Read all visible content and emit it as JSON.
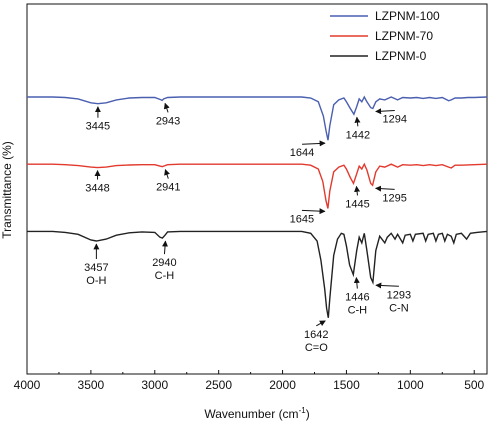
{
  "chart_data": {
    "type": "line",
    "xlabel": "Wavenumber (cm",
    "xlabel_sup": "-1",
    "xlabel_end": ")",
    "ylabel": "Transmittance (%)",
    "xlim": [
      4000,
      400
    ],
    "x_reversed": true,
    "xticks": [
      4000,
      3500,
      3000,
      2500,
      2000,
      1500,
      1000,
      500
    ],
    "yticks_shown": false,
    "grid": false,
    "legend_position": "top-right",
    "series": [
      {
        "name": "LZPNM-100",
        "color": "#4a5fb0",
        "baseline": 0.0,
        "points": [
          [
            4000,
            0
          ],
          [
            3800,
            0
          ],
          [
            3700,
            -0.5
          ],
          [
            3600,
            -2
          ],
          [
            3500,
            -6
          ],
          [
            3445,
            -7
          ],
          [
            3380,
            -6
          ],
          [
            3300,
            -3
          ],
          [
            3200,
            -1
          ],
          [
            3100,
            -0.5
          ],
          [
            3000,
            -0.5
          ],
          [
            2950,
            -3
          ],
          [
            2943,
            -3.5
          ],
          [
            2930,
            -2
          ],
          [
            2900,
            -0.5
          ],
          [
            2800,
            0
          ],
          [
            2000,
            0
          ],
          [
            1850,
            0
          ],
          [
            1780,
            -1
          ],
          [
            1720,
            -5
          ],
          [
            1680,
            -20
          ],
          [
            1660,
            -35
          ],
          [
            1644,
            -45
          ],
          [
            1630,
            -30
          ],
          [
            1600,
            -8
          ],
          [
            1560,
            -3
          ],
          [
            1520,
            -1
          ],
          [
            1500,
            -5
          ],
          [
            1470,
            -12
          ],
          [
            1442,
            -18
          ],
          [
            1420,
            -10
          ],
          [
            1400,
            -2
          ],
          [
            1380,
            -5
          ],
          [
            1360,
            0
          ],
          [
            1340,
            -5
          ],
          [
            1310,
            -11
          ],
          [
            1294,
            -12
          ],
          [
            1270,
            -5
          ],
          [
            1240,
            -2
          ],
          [
            1200,
            -3
          ],
          [
            1150,
            0
          ],
          [
            1100,
            -3
          ],
          [
            1060,
            -0.5
          ],
          [
            1000,
            -1
          ],
          [
            950,
            -0.5
          ],
          [
            900,
            -1.5
          ],
          [
            850,
            -0.5
          ],
          [
            800,
            -1.5
          ],
          [
            750,
            -0.5
          ],
          [
            700,
            -4
          ],
          [
            680,
            -3
          ],
          [
            650,
            -1
          ],
          [
            600,
            -1
          ],
          [
            550,
            -0.5
          ],
          [
            500,
            -0.5
          ],
          [
            400,
            0
          ]
        ]
      },
      {
        "name": "LZPNM-70",
        "color": "#e23a2e",
        "baseline": -70.0,
        "points": [
          [
            4000,
            0
          ],
          [
            3800,
            0
          ],
          [
            3700,
            -0.5
          ],
          [
            3600,
            -1.5
          ],
          [
            3500,
            -3
          ],
          [
            3448,
            -3.5
          ],
          [
            3380,
            -3
          ],
          [
            3300,
            -1.5
          ],
          [
            3200,
            -0.8
          ],
          [
            3100,
            -0.5
          ],
          [
            3000,
            -0.5
          ],
          [
            2960,
            -2
          ],
          [
            2941,
            -2.5
          ],
          [
            2920,
            -1.5
          ],
          [
            2900,
            -0.5
          ],
          [
            2800,
            0
          ],
          [
            2000,
            0
          ],
          [
            1850,
            0
          ],
          [
            1780,
            -1
          ],
          [
            1720,
            -5
          ],
          [
            1685,
            -18
          ],
          [
            1660,
            -38
          ],
          [
            1645,
            -46
          ],
          [
            1630,
            -28
          ],
          [
            1600,
            -8
          ],
          [
            1560,
            -3
          ],
          [
            1520,
            -1
          ],
          [
            1500,
            -5
          ],
          [
            1470,
            -14
          ],
          [
            1445,
            -20
          ],
          [
            1420,
            -10
          ],
          [
            1400,
            -2
          ],
          [
            1380,
            -5
          ],
          [
            1360,
            0
          ],
          [
            1340,
            -6
          ],
          [
            1310,
            -20
          ],
          [
            1295,
            -22
          ],
          [
            1270,
            -8
          ],
          [
            1240,
            -2
          ],
          [
            1200,
            -3
          ],
          [
            1150,
            0
          ],
          [
            1100,
            -3
          ],
          [
            1060,
            -0.5
          ],
          [
            1000,
            -1
          ],
          [
            950,
            -0.5
          ],
          [
            900,
            -1.5
          ],
          [
            850,
            -0.5
          ],
          [
            800,
            -1.5
          ],
          [
            750,
            -0.5
          ],
          [
            700,
            -3
          ],
          [
            680,
            -4
          ],
          [
            650,
            -1
          ],
          [
            600,
            -1
          ],
          [
            500,
            -0.5
          ],
          [
            400,
            0
          ]
        ]
      },
      {
        "name": "LZPNM-0",
        "color": "#222222",
        "baseline": -140.0,
        "points": [
          [
            4000,
            0
          ],
          [
            3800,
            0
          ],
          [
            3700,
            -1
          ],
          [
            3600,
            -3
          ],
          [
            3500,
            -9
          ],
          [
            3457,
            -10
          ],
          [
            3380,
            -8
          ],
          [
            3300,
            -4
          ],
          [
            3200,
            -1.5
          ],
          [
            3100,
            -0.5
          ],
          [
            3000,
            -1
          ],
          [
            2960,
            -6
          ],
          [
            2940,
            -7
          ],
          [
            2920,
            -4
          ],
          [
            2900,
            -0.5
          ],
          [
            2800,
            0
          ],
          [
            2000,
            0
          ],
          [
            1850,
            0
          ],
          [
            1780,
            -2
          ],
          [
            1730,
            -10
          ],
          [
            1700,
            -30
          ],
          [
            1670,
            -60
          ],
          [
            1655,
            -80
          ],
          [
            1642,
            -90
          ],
          [
            1630,
            -70
          ],
          [
            1600,
            -25
          ],
          [
            1570,
            -8
          ],
          [
            1540,
            -2
          ],
          [
            1520,
            -3
          ],
          [
            1500,
            -15
          ],
          [
            1475,
            -35
          ],
          [
            1446,
            -45
          ],
          [
            1420,
            -20
          ],
          [
            1400,
            -6
          ],
          [
            1380,
            -12
          ],
          [
            1360,
            -2
          ],
          [
            1340,
            -20
          ],
          [
            1310,
            -48
          ],
          [
            1293,
            -53
          ],
          [
            1270,
            -20
          ],
          [
            1240,
            -5
          ],
          [
            1200,
            -12
          ],
          [
            1180,
            -6
          ],
          [
            1150,
            -2
          ],
          [
            1120,
            -8
          ],
          [
            1100,
            -3
          ],
          [
            1060,
            -12
          ],
          [
            1040,
            -4
          ],
          [
            1000,
            -3
          ],
          [
            980,
            -10
          ],
          [
            960,
            -3
          ],
          [
            900,
            -2
          ],
          [
            880,
            -10
          ],
          [
            860,
            -3
          ],
          [
            820,
            -2
          ],
          [
            800,
            -10
          ],
          [
            780,
            -3
          ],
          [
            750,
            -2
          ],
          [
            730,
            -10
          ],
          [
            710,
            -3
          ],
          [
            680,
            -5
          ],
          [
            660,
            -12
          ],
          [
            640,
            -3
          ],
          [
            600,
            -2
          ],
          [
            560,
            -8
          ],
          [
            530,
            -2
          ],
          [
            480,
            -1
          ],
          [
            400,
            0
          ]
        ]
      }
    ],
    "annotations": [
      {
        "text": "3445",
        "x": 3445,
        "series": 0
      },
      {
        "text": "2943",
        "x": 2943,
        "series": 0
      },
      {
        "text": "1644",
        "x": 1644,
        "series": 0
      },
      {
        "text": "1442",
        "x": 1442,
        "series": 0
      },
      {
        "text": "1294",
        "x": 1294,
        "series": 0
      },
      {
        "text": "3448",
        "x": 3448,
        "series": 1
      },
      {
        "text": "2941",
        "x": 2941,
        "series": 1
      },
      {
        "text": "1645",
        "x": 1645,
        "series": 1
      },
      {
        "text": "1445",
        "x": 1445,
        "series": 1
      },
      {
        "text": "1295",
        "x": 1295,
        "series": 1
      },
      {
        "text": "3457",
        "sub": "O-H",
        "x": 3457,
        "series": 2
      },
      {
        "text": "2940",
        "sub": "C-H",
        "x": 2940,
        "series": 2
      },
      {
        "text": "1642",
        "sub": "C=O",
        "x": 1642,
        "series": 2
      },
      {
        "text": "1446",
        "sub": "C-H",
        "x": 1446,
        "series": 2
      },
      {
        "text": "1293",
        "sub": "C-N",
        "x": 1293,
        "series": 2
      }
    ]
  }
}
